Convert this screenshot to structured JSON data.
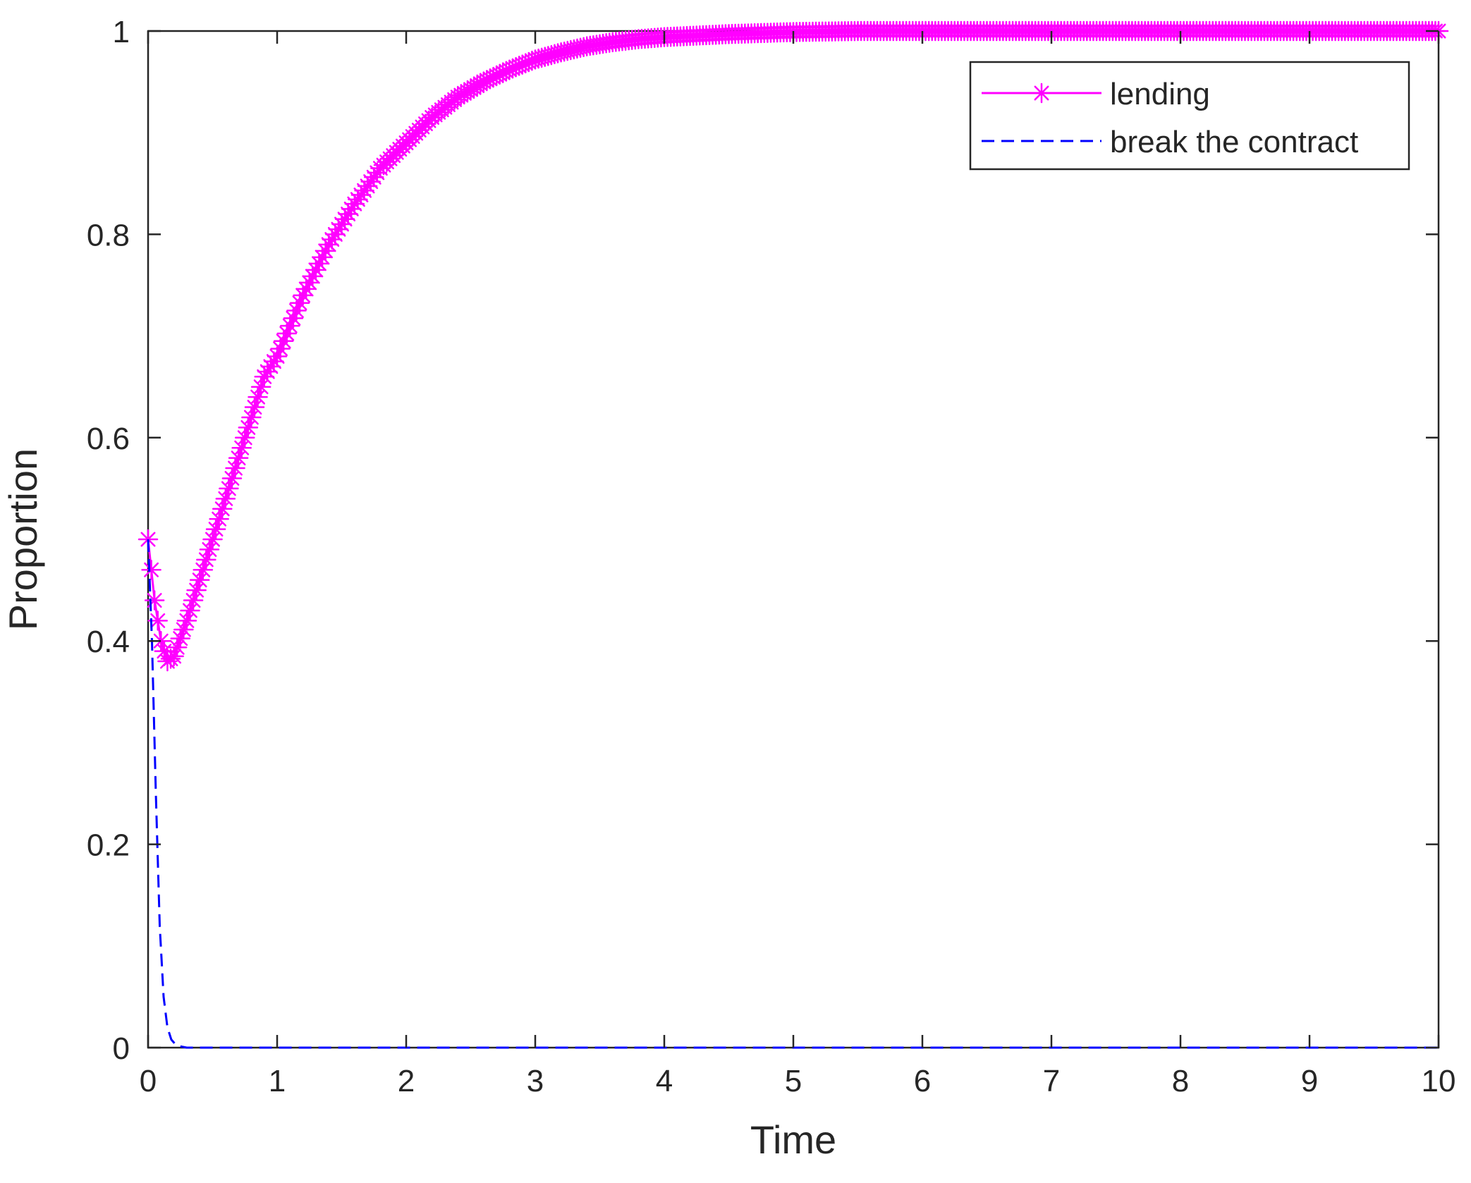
{
  "chart_data": {
    "type": "line",
    "title": "",
    "xlabel": "Time",
    "ylabel": "Proportion",
    "xlim": [
      0,
      10
    ],
    "ylim": [
      0,
      1
    ],
    "xticks": [
      0,
      1,
      2,
      3,
      4,
      5,
      6,
      7,
      8,
      9,
      10
    ],
    "yticks": [
      0,
      0.2,
      0.4,
      0.6,
      0.8,
      1
    ],
    "ytick_labels": [
      "0",
      "0.2",
      "0.4",
      "0.6",
      "0.8",
      "1"
    ],
    "grid": false,
    "legend_position": "top-right",
    "series": [
      {
        "name": "lending",
        "color": "#ff00ff",
        "line_style": "solid",
        "marker": "asterisk",
        "x": [
          0,
          0.05,
          0.1,
          0.15,
          0.2,
          0.3,
          0.4,
          0.5,
          0.6,
          0.7,
          0.8,
          0.9,
          1.0,
          1.2,
          1.4,
          1.6,
          1.8,
          2.0,
          2.2,
          2.4,
          2.6,
          2.8,
          3.0,
          3.2,
          3.4,
          3.6,
          3.8,
          4.0,
          4.5,
          5.0,
          5.5,
          6.0,
          7.0,
          8.0,
          9.0,
          10.0
        ],
        "y": [
          0.5,
          0.44,
          0.4,
          0.38,
          0.385,
          0.42,
          0.46,
          0.5,
          0.54,
          0.58,
          0.62,
          0.66,
          0.68,
          0.74,
          0.79,
          0.83,
          0.865,
          0.89,
          0.915,
          0.935,
          0.95,
          0.962,
          0.972,
          0.979,
          0.985,
          0.989,
          0.992,
          0.994,
          0.997,
          0.999,
          1.0,
          1.0,
          1.0,
          1.0,
          1.0,
          1.0
        ]
      },
      {
        "name": "break the contract",
        "color": "#0000ff",
        "line_style": "dashed",
        "marker": "none",
        "x": [
          0,
          0.03,
          0.06,
          0.09,
          0.12,
          0.15,
          0.18,
          0.22,
          0.3,
          0.5,
          1,
          2,
          3,
          4,
          5,
          6,
          7,
          8,
          9,
          10
        ],
        "y": [
          0.5,
          0.4,
          0.25,
          0.12,
          0.05,
          0.02,
          0.008,
          0.002,
          0.0,
          0.0,
          0,
          0,
          0,
          0,
          0,
          0,
          0,
          0,
          0,
          0
        ]
      }
    ]
  }
}
